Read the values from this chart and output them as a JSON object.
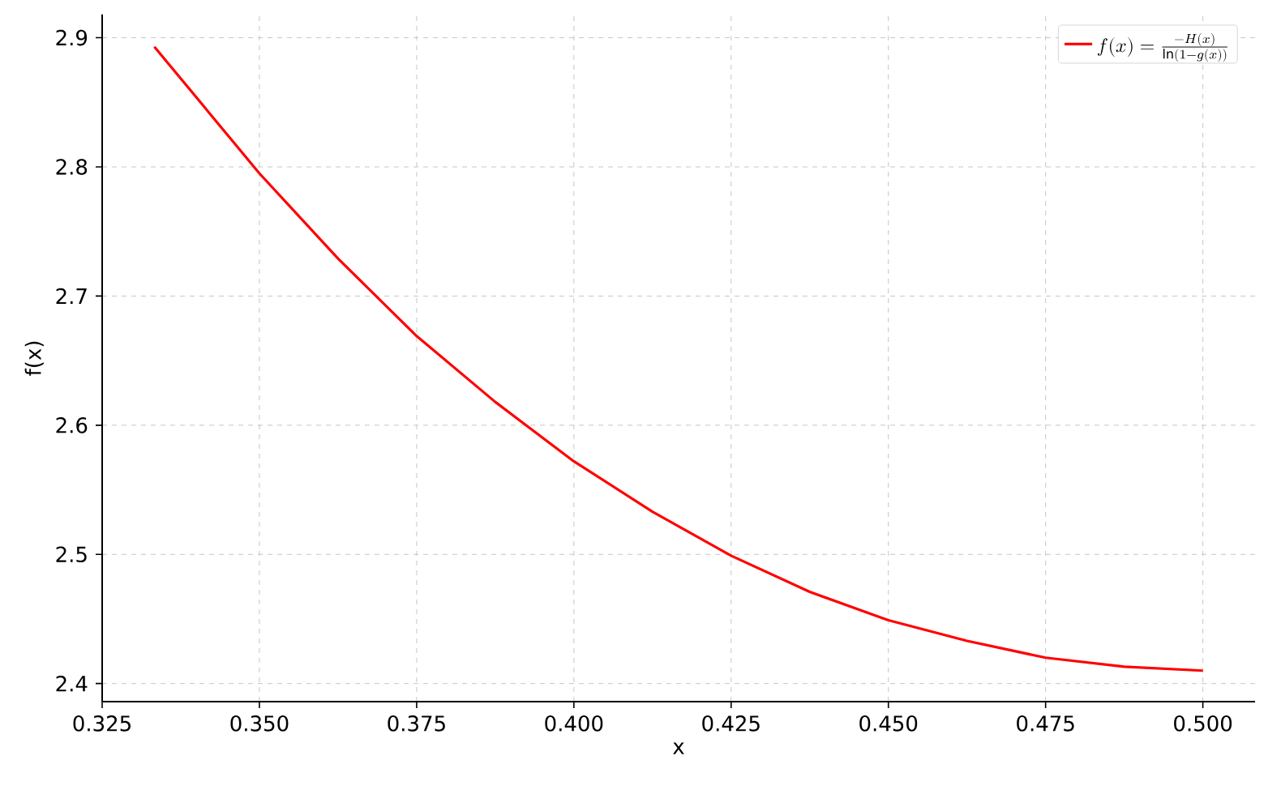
{
  "chart_data": {
    "type": "line",
    "xlabel": "x",
    "ylabel": "f(x)",
    "series": [
      {
        "name": "f(x) = \\frac{-H(x)}{\\ln(1-g(x))}",
        "color": "#ff0000",
        "x": [
          0.3333,
          0.35,
          0.3625,
          0.375,
          0.3875,
          0.4,
          0.4125,
          0.425,
          0.4375,
          0.45,
          0.4625,
          0.475,
          0.4875,
          0.5
        ],
        "values": [
          2.893,
          2.795,
          2.729,
          2.669,
          2.618,
          2.572,
          2.533,
          2.499,
          2.471,
          2.449,
          2.433,
          2.42,
          2.413,
          2.41
        ]
      }
    ],
    "xlim": [
      0.325,
      0.5083
    ],
    "ylim": [
      2.386,
      2.918
    ],
    "xticks": [
      0.325,
      {
        "value": 0.35,
        "label": "0.350"
      },
      0.375,
      {
        "value": 0.4,
        "label": "0.400"
      },
      0.425,
      {
        "value": 0.45,
        "label": "0.450"
      },
      0.475,
      {
        "value": 0.5,
        "label": "0.500"
      }
    ],
    "yticks": [
      2.4,
      2.5,
      2.6,
      2.7,
      2.8,
      2.9
    ],
    "grid": true,
    "legend": "top right"
  }
}
